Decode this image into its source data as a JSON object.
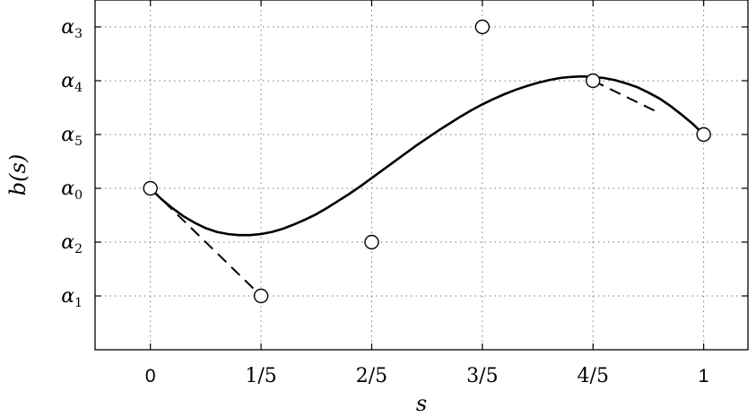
{
  "chart_data": {
    "type": "line",
    "xlabel": "s",
    "ylabel": "b(s)",
    "xlim": [
      -0.1,
      1.08
    ],
    "ylim": [
      -0.5,
      6
    ],
    "grid": true,
    "x_ticks": [
      {
        "value": 0,
        "label": "0",
        "style": "integer"
      },
      {
        "value": 0.2,
        "label": "1/5",
        "style": "fraction"
      },
      {
        "value": 0.4,
        "label": "2/5",
        "style": "fraction"
      },
      {
        "value": 0.6,
        "label": "3/5",
        "style": "fraction"
      },
      {
        "value": 0.8,
        "label": "4/5",
        "style": "fraction"
      },
      {
        "value": 1,
        "label": "1",
        "style": "integer"
      }
    ],
    "y_ticks": [
      {
        "value": 0.5,
        "base": "α",
        "sub": "1"
      },
      {
        "value": 1.5,
        "base": "α",
        "sub": "2"
      },
      {
        "value": 2.5,
        "base": "α",
        "sub": "0"
      },
      {
        "value": 3.5,
        "base": "α",
        "sub": "5"
      },
      {
        "value": 4.5,
        "base": "α",
        "sub": "4"
      },
      {
        "value": 5.5,
        "base": "α",
        "sub": "3"
      }
    ],
    "control_points": {
      "x": [
        0,
        0.2,
        0.4,
        0.6,
        0.8,
        1
      ],
      "y": [
        2.5,
        0.5,
        1.5,
        5.5,
        4.5,
        3.5
      ]
    },
    "series": [
      {
        "style": "solid",
        "x": [
          0,
          0.02,
          0.04,
          0.06,
          0.08,
          0.1,
          0.12,
          0.14,
          0.16,
          0.18,
          0.2,
          0.22,
          0.24,
          0.26,
          0.28,
          0.3,
          0.32,
          0.34,
          0.36,
          0.38,
          0.4,
          0.42,
          0.44,
          0.46,
          0.48,
          0.5,
          0.52,
          0.54,
          0.56,
          0.58,
          0.6,
          0.62,
          0.64,
          0.66,
          0.68,
          0.7,
          0.72,
          0.74,
          0.76,
          0.78,
          0.8,
          0.82,
          0.84,
          0.86,
          0.88,
          0.9,
          0.92,
          0.94,
          0.96,
          0.98,
          1
        ],
        "y": [
          2.5,
          2.3,
          2.13,
          1.98,
          1.86,
          1.76,
          1.69,
          1.65,
          1.63,
          1.63,
          1.65,
          1.69,
          1.75,
          1.83,
          1.92,
          2.02,
          2.14,
          2.27,
          2.4,
          2.54,
          2.69,
          2.84,
          2.99,
          3.14,
          3.29,
          3.43,
          3.57,
          3.7,
          3.83,
          3.95,
          4.06,
          4.16,
          4.25,
          4.33,
          4.4,
          4.46,
          4.51,
          4.55,
          4.57,
          4.58,
          4.57,
          4.55,
          4.51,
          4.45,
          4.38,
          4.28,
          4.17,
          4.03,
          3.87,
          3.7,
          3.5
        ]
      },
      {
        "style": "dashed",
        "x": [
          0,
          0.2
        ],
        "y": [
          2.5,
          0.5
        ]
      },
      {
        "style": "dashed",
        "x": [
          0.8,
          0.92
        ],
        "y": [
          4.5,
          3.9
        ]
      }
    ]
  }
}
